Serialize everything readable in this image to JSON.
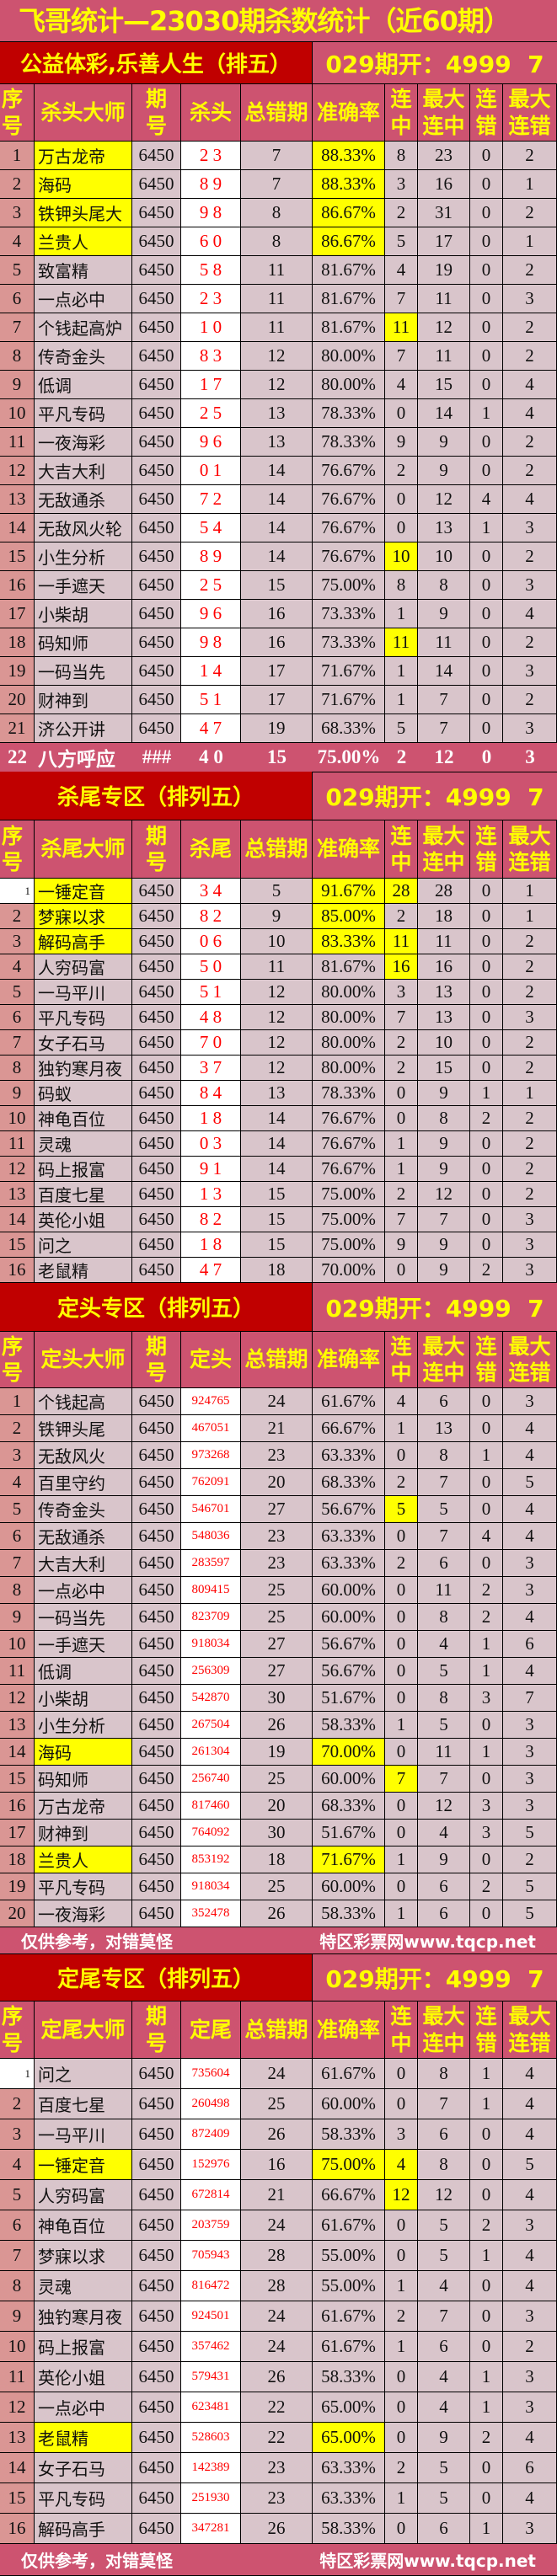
{
  "title": "飞哥统计—23030期杀数统计（近60期）",
  "colors": {
    "bg": "#cd5370",
    "dark_red": "#c00000",
    "header_text": "#ffff00",
    "highlight": "#ffff00",
    "kill_text": "#ff0000"
  },
  "footer": {
    "left": "仅供参考，对错莫怪",
    "right": "特区彩票网www.tqcp.net"
  },
  "sections": [
    {
      "heading": "公益体彩,乐善人生（排五）",
      "draw": "029期开：4999  7",
      "headers": [
        "序\n号",
        "杀头大师",
        "期\n号",
        "杀头",
        "总错期",
        "准确率",
        "连\n中",
        "最大\n连中",
        "连\n错",
        "最大\n连错"
      ],
      "rows": [
        [
          "1",
          "万古龙帝",
          "6450",
          "2 3",
          "7",
          "88.33%",
          "8",
          "23",
          "0",
          "2"
        ],
        [
          "2",
          "海码",
          "6450",
          "8 9",
          "7",
          "88.33%",
          "3",
          "16",
          "0",
          "1"
        ],
        [
          "3",
          "铁钾头尾大",
          "6450",
          "9 8",
          "8",
          "86.67%",
          "2",
          "31",
          "0",
          "2"
        ],
        [
          "4",
          "兰贵人",
          "6450",
          "6 0",
          "8",
          "86.67%",
          "5",
          "17",
          "0",
          "1"
        ],
        [
          "5",
          "致富精",
          "6450",
          "5 8",
          "11",
          "81.67%",
          "4",
          "19",
          "0",
          "2"
        ],
        [
          "6",
          "一点必中",
          "6450",
          "2 3",
          "11",
          "81.67%",
          "7",
          "11",
          "0",
          "3"
        ],
        [
          "7",
          "个钱起高炉",
          "6450",
          "1 0",
          "11",
          "81.67%",
          "11",
          "12",
          "0",
          "2"
        ],
        [
          "8",
          "传奇金头",
          "6450",
          "8 3",
          "12",
          "80.00%",
          "7",
          "11",
          "0",
          "2"
        ],
        [
          "9",
          "低调",
          "6450",
          "1 7",
          "12",
          "80.00%",
          "4",
          "15",
          "0",
          "4"
        ],
        [
          "10",
          "平凡专码",
          "6450",
          "2 5",
          "13",
          "78.33%",
          "0",
          "14",
          "1",
          "4"
        ],
        [
          "11",
          "一夜海彩",
          "6450",
          "9 6",
          "13",
          "78.33%",
          "9",
          "9",
          "0",
          "2"
        ],
        [
          "12",
          "大吉大利",
          "6450",
          "0 1",
          "14",
          "76.67%",
          "2",
          "9",
          "0",
          "2"
        ],
        [
          "13",
          "无敌通杀",
          "6450",
          "7 2",
          "14",
          "76.67%",
          "0",
          "12",
          "4",
          "4"
        ],
        [
          "14",
          "无敌风火轮",
          "6450",
          "5 4",
          "14",
          "76.67%",
          "0",
          "13",
          "1",
          "3"
        ],
        [
          "15",
          "小生分析",
          "6450",
          "8 9",
          "14",
          "76.67%",
          "10",
          "10",
          "0",
          "2"
        ],
        [
          "16",
          "一手遮天",
          "6450",
          "2 5",
          "15",
          "75.00%",
          "8",
          "8",
          "0",
          "3"
        ],
        [
          "17",
          "小柴胡",
          "6450",
          "9 6",
          "16",
          "73.33%",
          "1",
          "9",
          "0",
          "4"
        ],
        [
          "18",
          "码知师",
          "6450",
          "9 8",
          "16",
          "73.33%",
          "11",
          "11",
          "0",
          "2"
        ],
        [
          "19",
          "一码当先",
          "6450",
          "1 4",
          "17",
          "71.67%",
          "1",
          "14",
          "0",
          "3"
        ],
        [
          "20",
          "财神到",
          "6450",
          "5 1",
          "17",
          "71.67%",
          "1",
          "7",
          "0",
          "2"
        ],
        [
          "21",
          "济公开讲",
          "6450",
          "4 7",
          "19",
          "68.33%",
          "5",
          "7",
          "0",
          "3"
        ]
      ],
      "highlight": {
        "0": [
          1,
          5
        ],
        "1": [
          1,
          5
        ],
        "2": [
          1,
          5
        ],
        "3": [
          1,
          5
        ],
        "6": [
          6
        ],
        "14": [
          6
        ],
        "17": [
          6
        ]
      },
      "summary": [
        "22",
        "八方呼应",
        "###",
        "4 0",
        "15",
        "75.00%",
        "2",
        "12",
        "0",
        "3"
      ]
    },
    {
      "heading": "杀尾专区（排列五）",
      "draw": "029期开：4999  7",
      "headers": [
        "序\n号",
        "杀尾大师",
        "期\n号",
        "杀尾",
        "总错期",
        "准确率",
        "连\n中",
        "最大\n连中",
        "连\n错",
        "最大\n连错"
      ],
      "rows": [
        [
          "1",
          "一锤定音",
          "6450",
          "3 4",
          "5",
          "91.67%",
          "28",
          "28",
          "0",
          "1"
        ],
        [
          "2",
          "梦寐以求",
          "6450",
          "8 2",
          "9",
          "85.00%",
          "2",
          "18",
          "0",
          "1"
        ],
        [
          "3",
          "解码高手",
          "6450",
          "0 6",
          "10",
          "83.33%",
          "11",
          "11",
          "0",
          "2"
        ],
        [
          "4",
          "人穷码富",
          "6450",
          "5 0",
          "11",
          "81.67%",
          "16",
          "16",
          "0",
          "2"
        ],
        [
          "5",
          "一马平川",
          "6450",
          "5 1",
          "12",
          "80.00%",
          "3",
          "13",
          "0",
          "2"
        ],
        [
          "6",
          "平凡专码",
          "6450",
          "4 8",
          "12",
          "80.00%",
          "7",
          "13",
          "0",
          "3"
        ],
        [
          "7",
          "女子石马",
          "6450",
          "7 0",
          "12",
          "80.00%",
          "2",
          "10",
          "0",
          "2"
        ],
        [
          "8",
          "独钓寒月夜",
          "6450",
          "3 7",
          "12",
          "80.00%",
          "2",
          "15",
          "0",
          "2"
        ],
        [
          "9",
          "码蚁",
          "6450",
          "8 4",
          "13",
          "78.33%",
          "0",
          "9",
          "1",
          "1"
        ],
        [
          "10",
          "神龟百位",
          "6450",
          "1 8",
          "14",
          "76.67%",
          "0",
          "8",
          "2",
          "2"
        ],
        [
          "11",
          "灵魂",
          "6450",
          "0 3",
          "14",
          "76.67%",
          "1",
          "9",
          "0",
          "2"
        ],
        [
          "12",
          "码上报富",
          "6450",
          "9 1",
          "14",
          "76.67%",
          "1",
          "9",
          "0",
          "2"
        ],
        [
          "13",
          "百度七星",
          "6450",
          "1 3",
          "15",
          "75.00%",
          "2",
          "12",
          "0",
          "2"
        ],
        [
          "14",
          "英伦小姐",
          "6450",
          "8 2",
          "15",
          "75.00%",
          "7",
          "7",
          "0",
          "3"
        ],
        [
          "15",
          "问之",
          "6450",
          "1 8",
          "15",
          "75.00%",
          "9",
          "9",
          "0",
          "3"
        ],
        [
          "16",
          "老鼠精",
          "6450",
          "4 7",
          "18",
          "70.00%",
          "0",
          "9",
          "2",
          "3"
        ]
      ],
      "highlight": {
        "0": [
          1,
          5,
          6
        ],
        "1": [
          1,
          5
        ],
        "2": [
          1,
          5,
          6
        ],
        "3": [
          6
        ]
      }
    },
    {
      "heading": "定头专区（排列五）",
      "draw": "029期开：4999  7",
      "headers": [
        "序\n号",
        "定头大师",
        "期\n号",
        "定头",
        "总错期",
        "准确率",
        "连\n中",
        "最大\n连中",
        "连\n错",
        "最大\n连错"
      ],
      "rows": [
        [
          "1",
          "个钱起高",
          "6450",
          "924765",
          "24",
          "61.67%",
          "4",
          "6",
          "0",
          "3"
        ],
        [
          "2",
          "铁钾头尾",
          "6450",
          "467051",
          "21",
          "66.67%",
          "1",
          "13",
          "0",
          "4"
        ],
        [
          "3",
          "无敌风火",
          "6450",
          "973268",
          "23",
          "63.33%",
          "0",
          "8",
          "1",
          "4"
        ],
        [
          "4",
          "百里守约",
          "6450",
          "762091",
          "20",
          "68.33%",
          "2",
          "7",
          "0",
          "5"
        ],
        [
          "5",
          "传奇金头",
          "6450",
          "546701",
          "27",
          "56.67%",
          "5",
          "5",
          "0",
          "4"
        ],
        [
          "6",
          "无敌通杀",
          "6450",
          "548036",
          "23",
          "63.33%",
          "0",
          "7",
          "4",
          "4"
        ],
        [
          "7",
          "大吉大利",
          "6450",
          "283597",
          "23",
          "63.33%",
          "2",
          "6",
          "0",
          "3"
        ],
        [
          "8",
          "一点必中",
          "6450",
          "809415",
          "25",
          "60.00%",
          "0",
          "11",
          "2",
          "3"
        ],
        [
          "9",
          "一码当先",
          "6450",
          "823709",
          "25",
          "60.00%",
          "0",
          "8",
          "2",
          "4"
        ],
        [
          "10",
          "一手遮天",
          "6450",
          "918034",
          "27",
          "56.67%",
          "0",
          "4",
          "1",
          "6"
        ],
        [
          "11",
          "低调",
          "6450",
          "256309",
          "27",
          "56.67%",
          "0",
          "5",
          "1",
          "4"
        ],
        [
          "12",
          "小柴胡",
          "6450",
          "542870",
          "30",
          "51.67%",
          "0",
          "8",
          "3",
          "7"
        ],
        [
          "13",
          "小生分析",
          "6450",
          "267504",
          "26",
          "58.33%",
          "1",
          "5",
          "0",
          "3"
        ],
        [
          "14",
          "海码",
          "6450",
          "261304",
          "19",
          "70.00%",
          "0",
          "11",
          "1",
          "3"
        ],
        [
          "15",
          "码知师",
          "6450",
          "256740",
          "25",
          "60.00%",
          "7",
          "7",
          "0",
          "3"
        ],
        [
          "16",
          "万古龙帝",
          "6450",
          "817460",
          "20",
          "68.33%",
          "0",
          "12",
          "3",
          "3"
        ],
        [
          "17",
          "财神到",
          "6450",
          "764092",
          "30",
          "51.67%",
          "0",
          "4",
          "3",
          "5"
        ],
        [
          "18",
          "兰贵人",
          "6450",
          "853192",
          "18",
          "71.67%",
          "1",
          "9",
          "0",
          "2"
        ],
        [
          "19",
          "平凡专码",
          "6450",
          "918034",
          "25",
          "60.00%",
          "0",
          "6",
          "2",
          "5"
        ],
        [
          "20",
          "一夜海彩",
          "6450",
          "352478",
          "26",
          "58.33%",
          "1",
          "6",
          "0",
          "5"
        ]
      ],
      "highlight": {
        "4": [
          6
        ],
        "13": [
          1,
          5
        ],
        "14": [
          6
        ],
        "17": [
          1,
          5
        ]
      }
    },
    {
      "heading": "定尾专区（排列五）",
      "draw": "029期开：4999  7",
      "headers": [
        "序\n号",
        "定尾大师",
        "期\n号",
        "定尾",
        "总错期",
        "准确率",
        "连\n中",
        "最大\n连中",
        "连\n错",
        "最大\n连错"
      ],
      "rows": [
        [
          "1",
          "问之",
          "6450",
          "735604",
          "24",
          "61.67%",
          "0",
          "8",
          "1",
          "4"
        ],
        [
          "2",
          "百度七星",
          "6450",
          "260498",
          "25",
          "60.00%",
          "0",
          "7",
          "1",
          "4"
        ],
        [
          "3",
          "一马平川",
          "6450",
          "872409",
          "26",
          "58.33%",
          "3",
          "6",
          "0",
          "4"
        ],
        [
          "4",
          "一锤定音",
          "6450",
          "152976",
          "16",
          "75.00%",
          "4",
          "8",
          "0",
          "5"
        ],
        [
          "5",
          "人穷码富",
          "6450",
          "672814",
          "21",
          "66.67%",
          "12",
          "12",
          "0",
          "4"
        ],
        [
          "6",
          "神龟百位",
          "6450",
          "203759",
          "24",
          "61.67%",
          "0",
          "5",
          "2",
          "3"
        ],
        [
          "7",
          "梦寐以求",
          "6450",
          "705943",
          "28",
          "55.00%",
          "0",
          "5",
          "1",
          "4"
        ],
        [
          "8",
          "灵魂",
          "6450",
          "816472",
          "28",
          "55.00%",
          "1",
          "4",
          "0",
          "4"
        ],
        [
          "9",
          "独钓寒月夜",
          "6450",
          "924501",
          "24",
          "61.67%",
          "2",
          "7",
          "0",
          "3"
        ],
        [
          "10",
          "码上报富",
          "6450",
          "357462",
          "24",
          "61.67%",
          "1",
          "6",
          "0",
          "2"
        ],
        [
          "11",
          "英伦小姐",
          "6450",
          "579431",
          "26",
          "58.33%",
          "0",
          "4",
          "1",
          "3"
        ],
        [
          "12",
          "一点必中",
          "6450",
          "623481",
          "22",
          "65.00%",
          "0",
          "4",
          "1",
          "3"
        ],
        [
          "13",
          "老鼠精",
          "6450",
          "528603",
          "22",
          "65.00%",
          "0",
          "9",
          "2",
          "4"
        ],
        [
          "14",
          "女子石马",
          "6450",
          "142389",
          "23",
          "63.33%",
          "2",
          "5",
          "0",
          "6"
        ],
        [
          "15",
          "平凡专码",
          "6450",
          "251930",
          "23",
          "63.33%",
          "1",
          "5",
          "0",
          "4"
        ],
        [
          "16",
          "解码高手",
          "6450",
          "347281",
          "26",
          "58.33%",
          "0",
          "6",
          "1",
          "3"
        ]
      ],
      "highlight": {
        "3": [
          1,
          5,
          6
        ],
        "4": [
          6
        ],
        "12": [
          1,
          5
        ]
      }
    }
  ]
}
